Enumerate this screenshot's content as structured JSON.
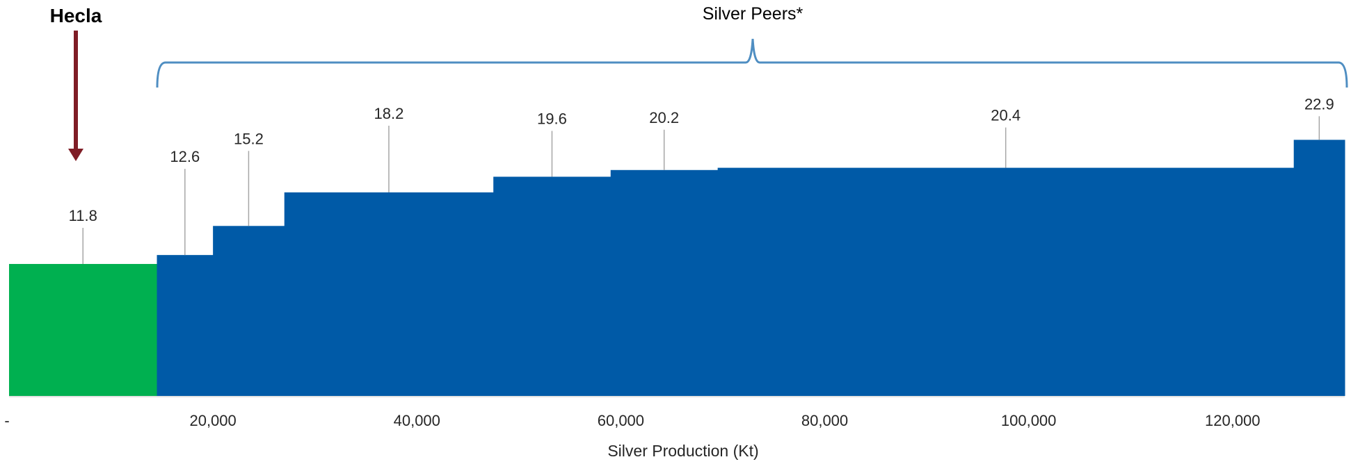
{
  "chart_data": {
    "type": "bar",
    "subtype": "variable-width step bars",
    "xlabel": "Silver Production (Kt)",
    "ylabel": "",
    "title": "",
    "xlim": [
      0,
      131000
    ],
    "x_ticks": [
      {
        "value": 0,
        "label": "-"
      },
      {
        "value": 20000,
        "label": "20,000"
      },
      {
        "value": 40000,
        "label": "40,000"
      },
      {
        "value": 60000,
        "label": "60,000"
      },
      {
        "value": 80000,
        "label": "80,000"
      },
      {
        "value": 100000,
        "label": "100,000"
      },
      {
        "value": 120000,
        "label": "120,000"
      }
    ],
    "ylim": [
      0,
      25
    ],
    "grid": false,
    "bars": [
      {
        "x_start": 0,
        "x_end": 14500,
        "value": 11.8,
        "label": "11.8",
        "group": "Hecla"
      },
      {
        "x_start": 14500,
        "x_end": 20000,
        "value": 12.6,
        "label": "12.6",
        "group": "Silver Peers"
      },
      {
        "x_start": 20000,
        "x_end": 27000,
        "value": 15.2,
        "label": "15.2",
        "group": "Silver Peers"
      },
      {
        "x_start": 27000,
        "x_end": 47500,
        "value": 18.2,
        "label": "18.2",
        "group": "Silver Peers"
      },
      {
        "x_start": 47500,
        "x_end": 59000,
        "value": 19.6,
        "label": "19.6",
        "group": "Silver Peers"
      },
      {
        "x_start": 59000,
        "x_end": 69500,
        "value": 20.2,
        "label": "20.2",
        "group": "Silver Peers"
      },
      {
        "x_start": 69500,
        "x_end": 126000,
        "value": 20.4,
        "label": "20.4",
        "group": "Silver Peers"
      },
      {
        "x_start": 126000,
        "x_end": 131000,
        "value": 22.9,
        "label": "22.9",
        "group": "Silver Peers"
      }
    ],
    "annotations": {
      "hecla_label": "Hecla",
      "peers_label": "Silver Peers*"
    },
    "colors": {
      "hecla": "#00b050",
      "peers": "#005aa7",
      "arrow": "#7f1d26",
      "brace": "#4f8ec2",
      "leader": "#a6a6a6",
      "axis": "#d9d9d9"
    }
  }
}
